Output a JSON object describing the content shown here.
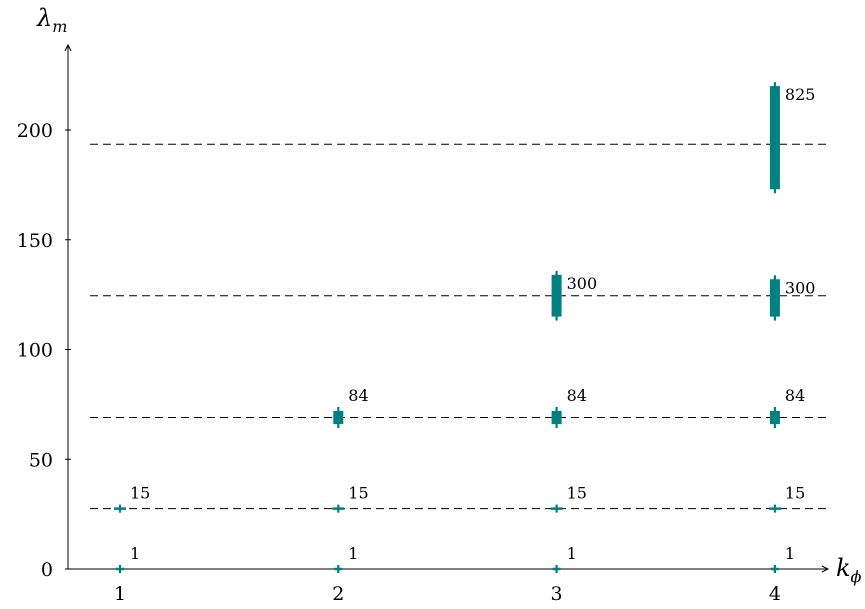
{
  "chart_data": {
    "type": "scatter",
    "title": "",
    "xlabel": "k",
    "xlabel_sub": "ϕ",
    "ylabel": "λ",
    "ylabel_sub": "m",
    "xlim": [
      0.78,
      4.3
    ],
    "ylim": [
      0,
      240
    ],
    "x_ticks": [
      1,
      2,
      3,
      4
    ],
    "y_ticks": [
      0,
      50,
      100,
      150,
      200
    ],
    "grid": false,
    "reference_lines_y": [
      27.5,
      69,
      124.5,
      193.5
    ],
    "bar_color": "#008080",
    "series": [
      {
        "values": [
          {
            "x": 1,
            "y_min": 0,
            "y_max": 0,
            "label": "1"
          },
          {
            "x": 1,
            "y_min": 27.5,
            "y_max": 27.5,
            "label": "15"
          },
          {
            "x": 2,
            "y_min": 0,
            "y_max": 0,
            "label": "1"
          },
          {
            "x": 2,
            "y_min": 27.5,
            "y_max": 27.5,
            "label": "15"
          },
          {
            "x": 2,
            "y_min": 66,
            "y_max": 72,
            "label": "84"
          },
          {
            "x": 3,
            "y_min": 0,
            "y_max": 0,
            "label": "1"
          },
          {
            "x": 3,
            "y_min": 27.5,
            "y_max": 27.5,
            "label": "15"
          },
          {
            "x": 3,
            "y_min": 66,
            "y_max": 72,
            "label": "84"
          },
          {
            "x": 3,
            "y_min": 115,
            "y_max": 134,
            "label": "300"
          },
          {
            "x": 4,
            "y_min": 0,
            "y_max": 0,
            "label": "1"
          },
          {
            "x": 4,
            "y_min": 27.5,
            "y_max": 27.5,
            "label": "15"
          },
          {
            "x": 4,
            "y_min": 66,
            "y_max": 72,
            "label": "84"
          },
          {
            "x": 4,
            "y_min": 115,
            "y_max": 132,
            "label": "300"
          },
          {
            "x": 4,
            "y_min": 173,
            "y_max": 220,
            "label": "825"
          }
        ]
      }
    ]
  }
}
